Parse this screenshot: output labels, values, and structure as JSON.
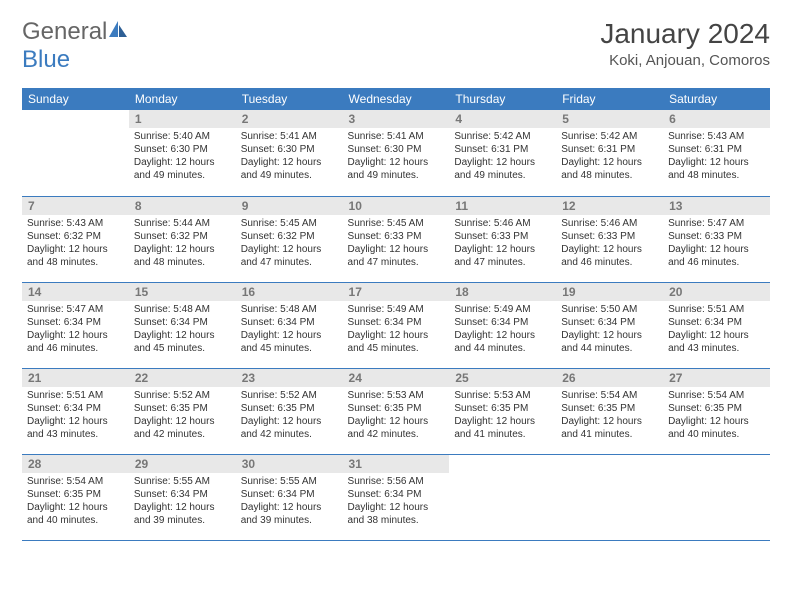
{
  "logo": {
    "text1": "General",
    "text2": "Blue"
  },
  "title": "January 2024",
  "location": "Koki, Anjouan, Comoros",
  "colors": {
    "header_bg": "#3b7bbf",
    "header_text": "#ffffff",
    "daynum_bg": "#e8e8e8",
    "daynum_text": "#777777",
    "border": "#3b7bbf",
    "body_text": "#333333",
    "logo_gray": "#666666",
    "logo_blue": "#3b7bbf"
  },
  "weekdays": [
    "Sunday",
    "Monday",
    "Tuesday",
    "Wednesday",
    "Thursday",
    "Friday",
    "Saturday"
  ],
  "first_weekday_index": 1,
  "days": [
    {
      "n": 1,
      "sunrise": "5:40 AM",
      "sunset": "6:30 PM",
      "daylight": "12 hours and 49 minutes."
    },
    {
      "n": 2,
      "sunrise": "5:41 AM",
      "sunset": "6:30 PM",
      "daylight": "12 hours and 49 minutes."
    },
    {
      "n": 3,
      "sunrise": "5:41 AM",
      "sunset": "6:30 PM",
      "daylight": "12 hours and 49 minutes."
    },
    {
      "n": 4,
      "sunrise": "5:42 AM",
      "sunset": "6:31 PM",
      "daylight": "12 hours and 49 minutes."
    },
    {
      "n": 5,
      "sunrise": "5:42 AM",
      "sunset": "6:31 PM",
      "daylight": "12 hours and 48 minutes."
    },
    {
      "n": 6,
      "sunrise": "5:43 AM",
      "sunset": "6:31 PM",
      "daylight": "12 hours and 48 minutes."
    },
    {
      "n": 7,
      "sunrise": "5:43 AM",
      "sunset": "6:32 PM",
      "daylight": "12 hours and 48 minutes."
    },
    {
      "n": 8,
      "sunrise": "5:44 AM",
      "sunset": "6:32 PM",
      "daylight": "12 hours and 48 minutes."
    },
    {
      "n": 9,
      "sunrise": "5:45 AM",
      "sunset": "6:32 PM",
      "daylight": "12 hours and 47 minutes."
    },
    {
      "n": 10,
      "sunrise": "5:45 AM",
      "sunset": "6:33 PM",
      "daylight": "12 hours and 47 minutes."
    },
    {
      "n": 11,
      "sunrise": "5:46 AM",
      "sunset": "6:33 PM",
      "daylight": "12 hours and 47 minutes."
    },
    {
      "n": 12,
      "sunrise": "5:46 AM",
      "sunset": "6:33 PM",
      "daylight": "12 hours and 46 minutes."
    },
    {
      "n": 13,
      "sunrise": "5:47 AM",
      "sunset": "6:33 PM",
      "daylight": "12 hours and 46 minutes."
    },
    {
      "n": 14,
      "sunrise": "5:47 AM",
      "sunset": "6:34 PM",
      "daylight": "12 hours and 46 minutes."
    },
    {
      "n": 15,
      "sunrise": "5:48 AM",
      "sunset": "6:34 PM",
      "daylight": "12 hours and 45 minutes."
    },
    {
      "n": 16,
      "sunrise": "5:48 AM",
      "sunset": "6:34 PM",
      "daylight": "12 hours and 45 minutes."
    },
    {
      "n": 17,
      "sunrise": "5:49 AM",
      "sunset": "6:34 PM",
      "daylight": "12 hours and 45 minutes."
    },
    {
      "n": 18,
      "sunrise": "5:49 AM",
      "sunset": "6:34 PM",
      "daylight": "12 hours and 44 minutes."
    },
    {
      "n": 19,
      "sunrise": "5:50 AM",
      "sunset": "6:34 PM",
      "daylight": "12 hours and 44 minutes."
    },
    {
      "n": 20,
      "sunrise": "5:51 AM",
      "sunset": "6:34 PM",
      "daylight": "12 hours and 43 minutes."
    },
    {
      "n": 21,
      "sunrise": "5:51 AM",
      "sunset": "6:34 PM",
      "daylight": "12 hours and 43 minutes."
    },
    {
      "n": 22,
      "sunrise": "5:52 AM",
      "sunset": "6:35 PM",
      "daylight": "12 hours and 42 minutes."
    },
    {
      "n": 23,
      "sunrise": "5:52 AM",
      "sunset": "6:35 PM",
      "daylight": "12 hours and 42 minutes."
    },
    {
      "n": 24,
      "sunrise": "5:53 AM",
      "sunset": "6:35 PM",
      "daylight": "12 hours and 42 minutes."
    },
    {
      "n": 25,
      "sunrise": "5:53 AM",
      "sunset": "6:35 PM",
      "daylight": "12 hours and 41 minutes."
    },
    {
      "n": 26,
      "sunrise": "5:54 AM",
      "sunset": "6:35 PM",
      "daylight": "12 hours and 41 minutes."
    },
    {
      "n": 27,
      "sunrise": "5:54 AM",
      "sunset": "6:35 PM",
      "daylight": "12 hours and 40 minutes."
    },
    {
      "n": 28,
      "sunrise": "5:54 AM",
      "sunset": "6:35 PM",
      "daylight": "12 hours and 40 minutes."
    },
    {
      "n": 29,
      "sunrise": "5:55 AM",
      "sunset": "6:34 PM",
      "daylight": "12 hours and 39 minutes."
    },
    {
      "n": 30,
      "sunrise": "5:55 AM",
      "sunset": "6:34 PM",
      "daylight": "12 hours and 39 minutes."
    },
    {
      "n": 31,
      "sunrise": "5:56 AM",
      "sunset": "6:34 PM",
      "daylight": "12 hours and 38 minutes."
    }
  ],
  "labels": {
    "sunrise": "Sunrise:",
    "sunset": "Sunset:",
    "daylight": "Daylight:"
  }
}
